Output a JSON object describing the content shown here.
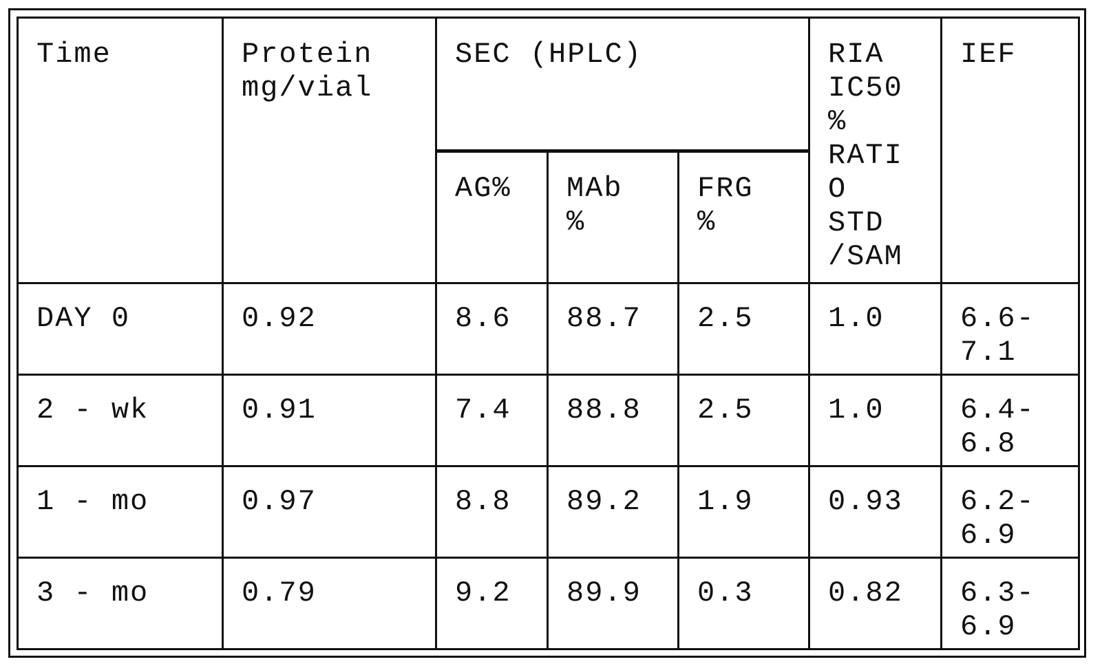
{
  "table": {
    "headers": {
      "time": "Time",
      "protein": "Protein\nmg/vial",
      "sec": "SEC  (HPLC)",
      "ria": "RIA\nIC50\n%\nRATI\nO\nSTD\n/SAM",
      "ief": "IEF",
      "ag": "AG%",
      "mab": "MAb\n%",
      "frg": "FRG\n%"
    },
    "rows": [
      {
        "time": "DAY 0",
        "protein": "0.92",
        "ag": "8.6",
        "mab": "88.7",
        "frg": "2.5",
        "ria": "1.0",
        "ief": "6.6-\n7.1"
      },
      {
        "time": "2  -  wk",
        "protein": "0.91",
        "ag": "7.4",
        "mab": "88.8",
        "frg": "2.5",
        "ria": "1.0",
        "ief": "6.4-\n6.8"
      },
      {
        "time": "1  -  mo",
        "protein": "0.97",
        "ag": "8.8",
        "mab": "89.2",
        "frg": "1.9",
        "ria": "0.93",
        "ief": "6.2-\n6.9"
      },
      {
        "time": "3  -  mo",
        "protein": "0.79",
        "ag": "9.2",
        "mab": "89.9",
        "frg": "0.3",
        "ria": "0.82",
        "ief": "6.3-\n6.9"
      }
    ]
  }
}
